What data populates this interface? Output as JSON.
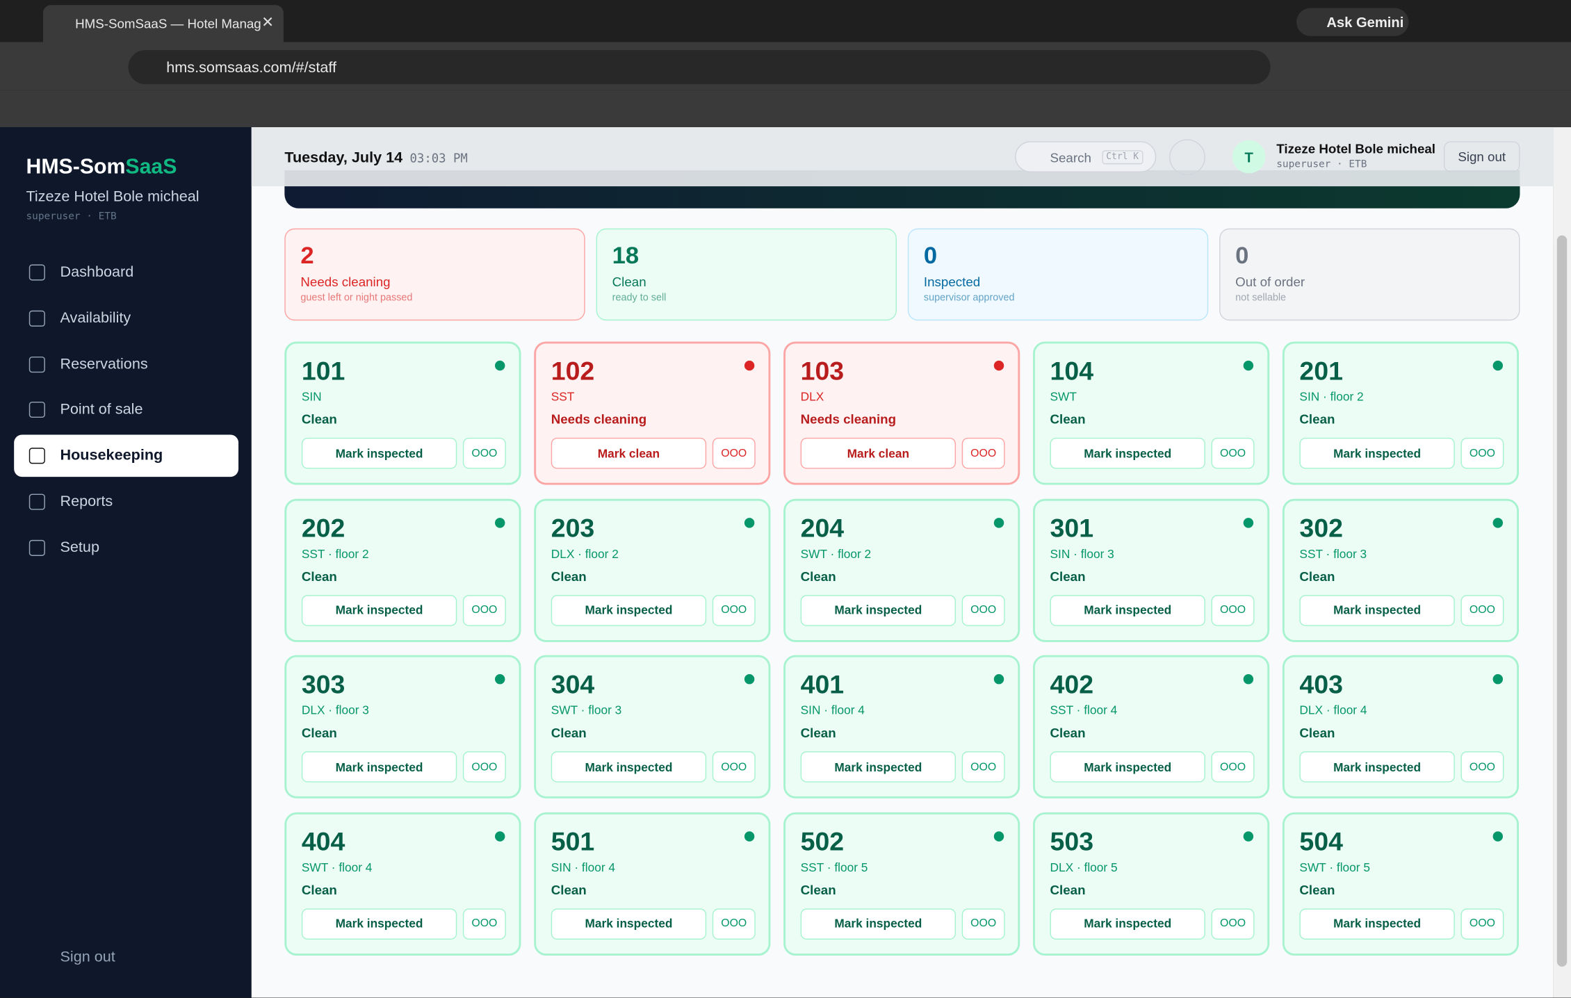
{
  "browser": {
    "tab_title": "HMS-SomSaaS — Hotel Manag",
    "url": "hms.somsaas.com/#/staff",
    "gemini": "Ask Gemini"
  },
  "sidebar": {
    "brand_a": "HMS-Som",
    "brand_b": "SaaS",
    "hotel": "Tizeze Hotel Bole micheal",
    "role": "superuser · ETB",
    "nav": [
      "Dashboard",
      "Availability",
      "Reservations",
      "Point of sale",
      "Housekeeping",
      "Reports",
      "Setup"
    ],
    "active": 4,
    "sign_out": "Sign out"
  },
  "header": {
    "date": "Tuesday, July 14",
    "time": "03:03 PM",
    "search": "Search",
    "shortcut": "Ctrl K",
    "avatar": "T",
    "user": "Tizeze Hotel Bole micheal",
    "role": "superuser · ETB",
    "sign_out": "Sign out"
  },
  "stats": [
    {
      "count": "2",
      "label": "Needs cleaning",
      "sub": "guest left or night passed",
      "color": "#dc2626",
      "bg": "#fef2f2",
      "border": "#fca5a5"
    },
    {
      "count": "18",
      "label": "Clean",
      "sub": "ready to sell",
      "color": "#047857",
      "bg": "#ecfdf5",
      "border": "#a7f3d0"
    },
    {
      "count": "0",
      "label": "Inspected",
      "sub": "supervisor approved",
      "color": "#0369a1",
      "bg": "#f0f9ff",
      "border": "#bae6fd"
    },
    {
      "count": "0",
      "label": "Out of order",
      "sub": "not sellable",
      "color": "#6b7280",
      "bg": "#f3f4f6",
      "border": "#d1d5db"
    }
  ],
  "rooms": [
    {
      "number": "101",
      "sub": "SIN",
      "status": "Clean",
      "action": "Mark inspected",
      "ooo": "OOO",
      "color": "green"
    },
    {
      "number": "102",
      "sub": "SST",
      "status": "Needs cleaning",
      "action": "Mark clean",
      "ooo": "OOO",
      "color": "red"
    },
    {
      "number": "103",
      "sub": "DLX",
      "status": "Needs cleaning",
      "action": "Mark clean",
      "ooo": "OOO",
      "color": "red"
    },
    {
      "number": "104",
      "sub": "SWT",
      "status": "Clean",
      "action": "Mark inspected",
      "ooo": "OOO",
      "color": "green"
    },
    {
      "number": "201",
      "sub": "SIN · floor 2",
      "status": "Clean",
      "action": "Mark inspected",
      "ooo": "OOO",
      "color": "green"
    },
    {
      "number": "202",
      "sub": "SST · floor 2",
      "status": "Clean",
      "action": "Mark inspected",
      "ooo": "OOO",
      "color": "green"
    },
    {
      "number": "203",
      "sub": "DLX · floor 2",
      "status": "Clean",
      "action": "Mark inspected",
      "ooo": "OOO",
      "color": "green"
    },
    {
      "number": "204",
      "sub": "SWT · floor 2",
      "status": "Clean",
      "action": "Mark inspected",
      "ooo": "OOO",
      "color": "green"
    },
    {
      "number": "301",
      "sub": "SIN · floor 3",
      "status": "Clean",
      "action": "Mark inspected",
      "ooo": "OOO",
      "color": "green"
    },
    {
      "number": "302",
      "sub": "SST · floor 3",
      "status": "Clean",
      "action": "Mark inspected",
      "ooo": "OOO",
      "color": "green"
    },
    {
      "number": "303",
      "sub": "DLX · floor 3",
      "status": "Clean",
      "action": "Mark inspected",
      "ooo": "OOO",
      "color": "green"
    },
    {
      "number": "304",
      "sub": "SWT · floor 3",
      "status": "Clean",
      "action": "Mark inspected",
      "ooo": "OOO",
      "color": "green"
    },
    {
      "number": "401",
      "sub": "SIN · floor 4",
      "status": "Clean",
      "action": "Mark inspected",
      "ooo": "OOO",
      "color": "green"
    },
    {
      "number": "402",
      "sub": "SST · floor 4",
      "status": "Clean",
      "action": "Mark inspected",
      "ooo": "OOO",
      "color": "green"
    },
    {
      "number": "403",
      "sub": "DLX · floor 4",
      "status": "Clean",
      "action": "Mark inspected",
      "ooo": "OOO",
      "color": "green"
    },
    {
      "number": "404",
      "sub": "SWT · floor 4",
      "status": "Clean",
      "action": "Mark inspected",
      "ooo": "OOO",
      "color": "green"
    },
    {
      "number": "501",
      "sub": "SIN · floor 4",
      "status": "Clean",
      "action": "Mark inspected",
      "ooo": "OOO",
      "color": "green"
    },
    {
      "number": "502",
      "sub": "SST · floor 5",
      "status": "Clean",
      "action": "Mark inspected",
      "ooo": "OOO",
      "color": "green"
    },
    {
      "number": "503",
      "sub": "DLX · floor 5",
      "status": "Clean",
      "action": "Mark inspected",
      "ooo": "OOO",
      "color": "green"
    },
    {
      "number": "504",
      "sub": "SWT · floor 5",
      "status": "Clean",
      "action": "Mark inspected",
      "ooo": "OOO",
      "color": "green"
    }
  ]
}
